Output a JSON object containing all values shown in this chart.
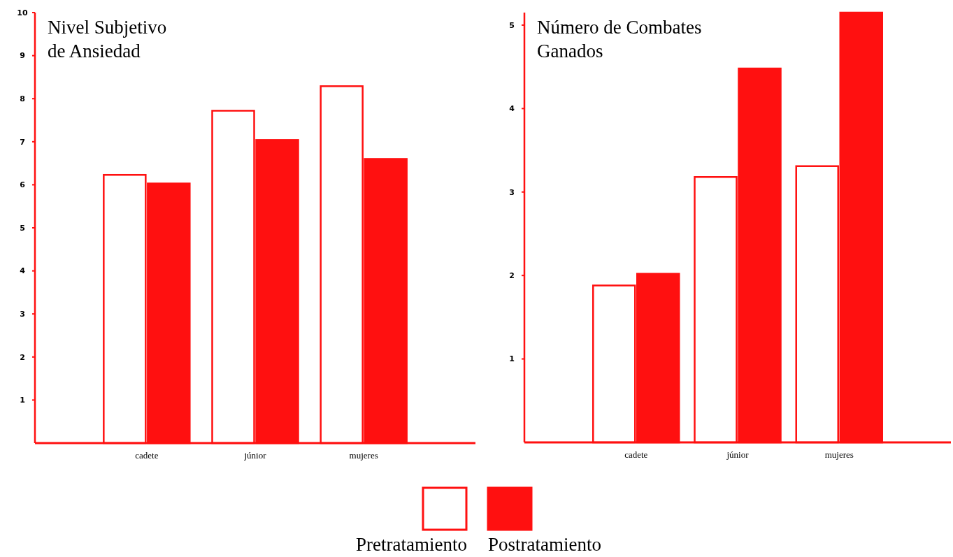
{
  "chart_data": [
    {
      "type": "bar",
      "title": "Nivel Subjetivo\nde Ansiedad",
      "categories": [
        "cadete",
        "júnior",
        "mujeres"
      ],
      "series": [
        {
          "name": "Pretratamiento",
          "color": "#ffffff",
          "values": [
            6.23,
            7.72,
            8.29
          ]
        },
        {
          "name": "Postratamiento",
          "color": "#ff1010",
          "values": [
            6.03,
            7.04,
            6.6
          ]
        }
      ],
      "ylim": [
        0,
        10
      ],
      "yticks": [
        1,
        2,
        3,
        4,
        5,
        6,
        7,
        8,
        9,
        10
      ],
      "grid": false,
      "legend": "bottom"
    },
    {
      "type": "bar",
      "title": "Número de Combates\nGanados",
      "categories": [
        "cadete",
        "júnior",
        "mujeres"
      ],
      "series": [
        {
          "color": "#ffffff",
          "values": [
            1.88,
            3.18,
            3.31
          ]
        },
        {
          "color": "#ff1010",
          "values": [
            2.02,
            4.48,
            5.15
          ]
        }
      ],
      "ylim": [
        0,
        5.15
      ],
      "yticks": [
        1,
        2,
        3,
        4,
        5
      ],
      "grid": false
    }
  ]
}
